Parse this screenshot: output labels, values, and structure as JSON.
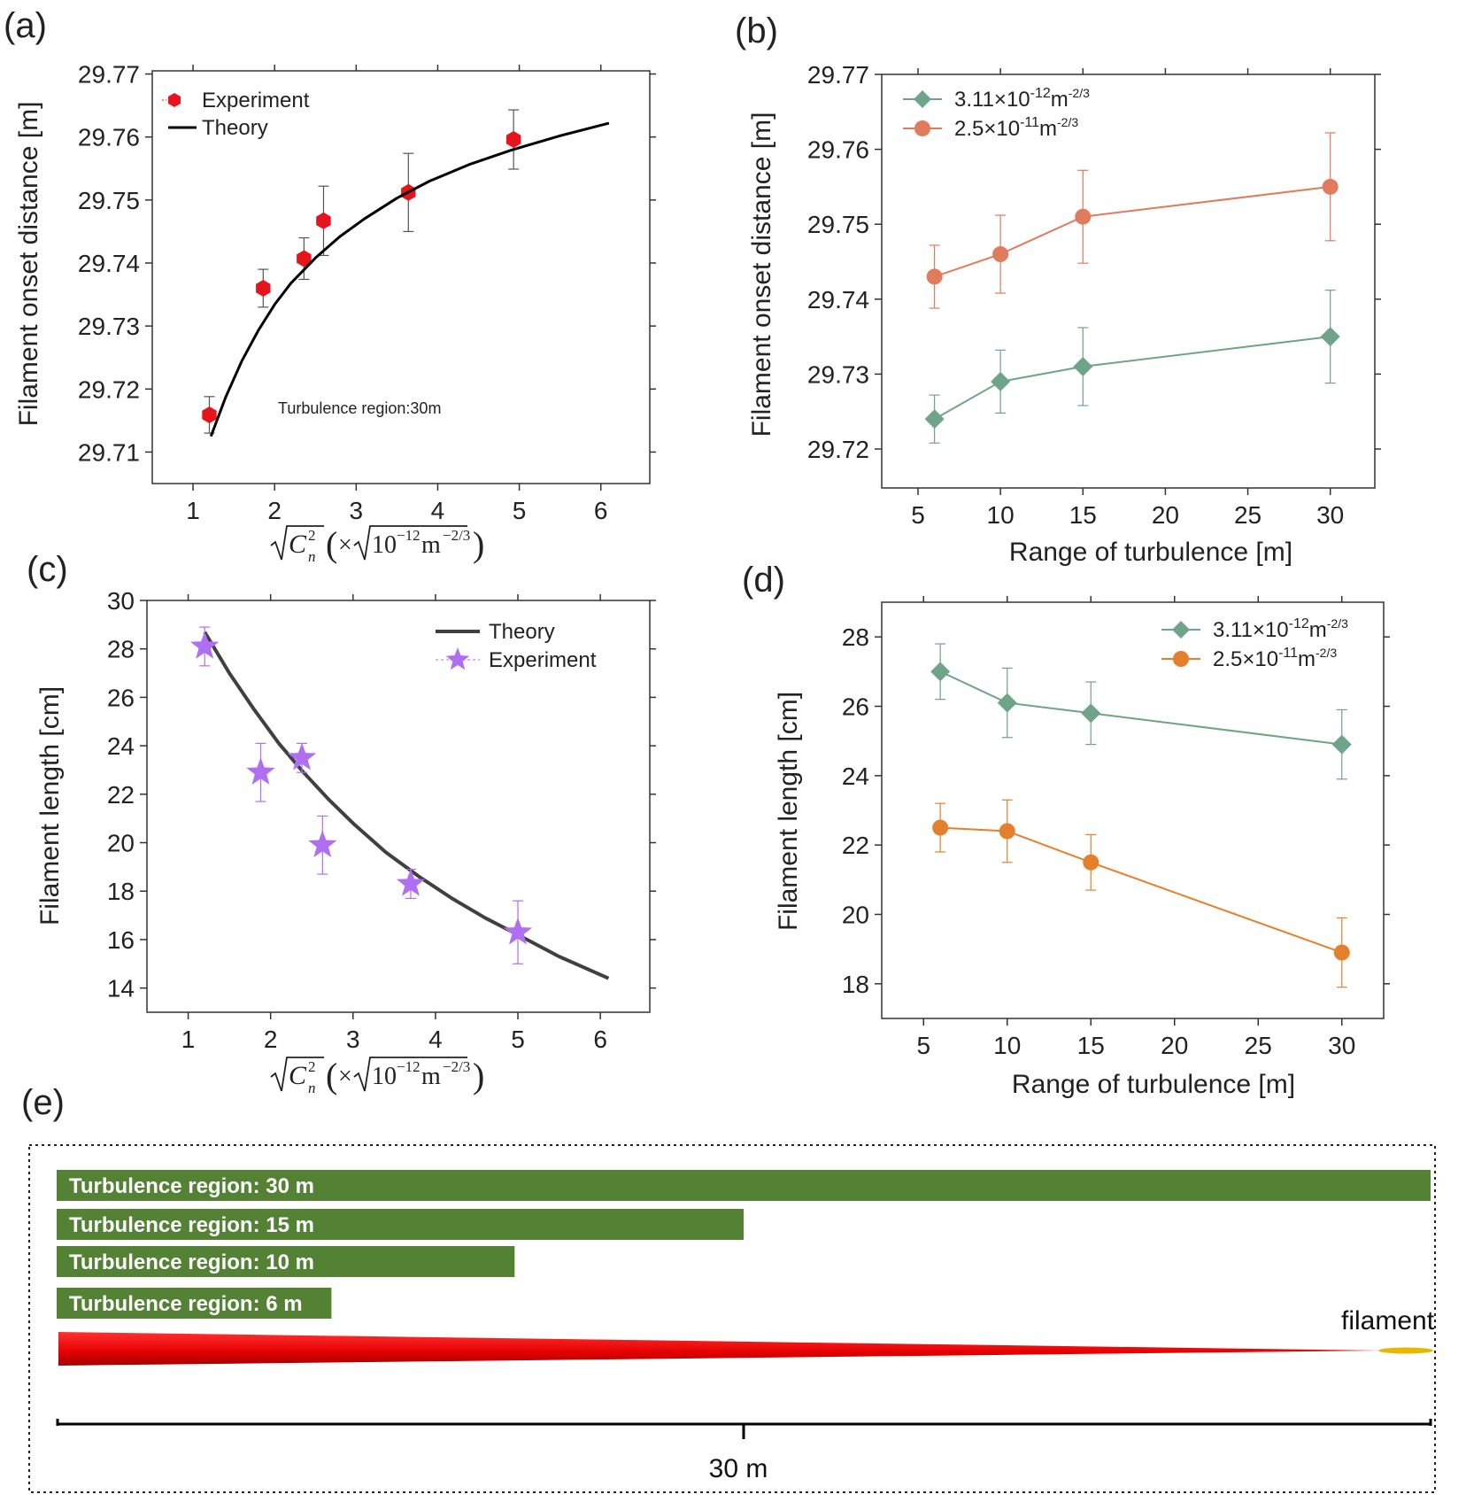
{
  "figure": {
    "panel_labels": [
      "(a)",
      "(b)",
      "(c)",
      "(d)",
      "(e)"
    ],
    "axis_unit_math": {
      "times": "×",
      "ten": "10",
      "exp": "−12",
      "unit": "m",
      "unit_exp": "−2/3",
      "cn": "C",
      "cn_sup": "2",
      "cn_sub": "n"
    }
  },
  "chart_data": [
    {
      "id": "a",
      "type": "scatter",
      "ylabel": "Filament onset distance [m]",
      "xlim": [
        0.5,
        6.6
      ],
      "ylim": [
        29.705,
        29.7705
      ],
      "xticks": [
        1,
        2,
        3,
        4,
        5,
        6
      ],
      "yticks": [
        29.71,
        29.72,
        29.73,
        29.74,
        29.75,
        29.76,
        29.77
      ],
      "ytick_labels": [
        "29.71",
        "29.72",
        "29.73",
        "29.74",
        "29.75",
        "29.76",
        "29.77"
      ],
      "annotation": "Turbulence region:30m",
      "legend": [
        {
          "label": "Experiment",
          "marker": "hexagon",
          "color": "#e8141b"
        },
        {
          "label": "Theory",
          "line": true,
          "color": "#000000"
        }
      ],
      "series": [
        {
          "name": "Experiment",
          "color": "#e8141b",
          "marker": "hexagon",
          "x": [
            1.2,
            1.86,
            2.36,
            2.6,
            3.64,
            4.93
          ],
          "y": [
            29.7159,
            29.736,
            29.7407,
            29.7467,
            29.7512,
            29.7596
          ],
          "err": [
            0.0029,
            0.003,
            0.0033,
            0.0055,
            0.0062,
            0.0047
          ]
        },
        {
          "name": "Theory",
          "color": "#000000",
          "line": true,
          "x": [
            1.22,
            1.4,
            1.6,
            1.8,
            2.0,
            2.2,
            2.5,
            2.8,
            3.1,
            3.5,
            3.9,
            4.4,
            4.9,
            5.5,
            6.1
          ],
          "y": [
            29.7125,
            29.7187,
            29.7245,
            29.7293,
            29.7334,
            29.7368,
            29.7408,
            29.7442,
            29.747,
            29.7503,
            29.753,
            29.7557,
            29.7579,
            29.7602,
            29.7622
          ]
        }
      ]
    },
    {
      "id": "b",
      "type": "line",
      "xlabel": "Range of turbulence [m]",
      "ylabel": "Filament onset distance [m]",
      "xlim": [
        2.8,
        32.7
      ],
      "ylim": [
        29.7148,
        29.77
      ],
      "xticks": [
        5,
        10,
        15,
        20,
        25,
        30
      ],
      "yticks": [
        29.72,
        29.73,
        29.74,
        29.75,
        29.76,
        29.77
      ],
      "ytick_labels": [
        "29.72",
        "29.73",
        "29.74",
        "29.75",
        "29.76",
        "29.77"
      ],
      "legend": [
        {
          "label": "3.11×10",
          "sup1": "-12",
          "mid": "m",
          "sup2": "-2/3",
          "marker": "diamond",
          "color": "#6fa38a"
        },
        {
          "label": "2.5×10",
          "sup1": "-11",
          "mid": "m",
          "sup2": "-2/3",
          "marker": "circle",
          "color": "#e07b5e"
        }
      ],
      "series": [
        {
          "name": "3.11×10-12m-2/3",
          "color": "#6fa38a",
          "marker": "diamond",
          "x": [
            6,
            10,
            15,
            30
          ],
          "y": [
            29.724,
            29.729,
            29.731,
            29.735
          ],
          "err": [
            0.0032,
            0.0042,
            0.0052,
            0.0062
          ]
        },
        {
          "name": "2.5×10-11m-2/3",
          "color": "#e07b5e",
          "marker": "circle",
          "x": [
            6,
            10,
            15,
            30
          ],
          "y": [
            29.743,
            29.746,
            29.751,
            29.755
          ],
          "err": [
            0.0042,
            0.0052,
            0.0062,
            0.0072
          ]
        }
      ]
    },
    {
      "id": "c",
      "type": "scatter",
      "ylabel": "Filament length [cm]",
      "xlim": [
        0.5,
        6.6
      ],
      "ylim": [
        13,
        30
      ],
      "xticks": [
        1,
        2,
        3,
        4,
        5,
        6
      ],
      "yticks": [
        14,
        16,
        18,
        20,
        22,
        24,
        26,
        28,
        30
      ],
      "ytick_labels": [
        "14",
        "16",
        "18",
        "20",
        "22",
        "24",
        "26",
        "28",
        "30"
      ],
      "legend": [
        {
          "label": "Theory",
          "line": true,
          "color": "#404040"
        },
        {
          "label": "Experiment",
          "marker": "star",
          "color": "#b06ef2"
        }
      ],
      "series": [
        {
          "name": "Theory",
          "color": "#404040",
          "line": true,
          "x": [
            1.2,
            1.5,
            1.8,
            2.1,
            2.4,
            2.7,
            3.0,
            3.4,
            3.8,
            4.2,
            4.6,
            5.0,
            5.5,
            6.1
          ],
          "y": [
            28.7,
            27.0,
            25.5,
            24.1,
            22.9,
            21.8,
            20.8,
            19.6,
            18.6,
            17.7,
            16.9,
            16.2,
            15.3,
            14.4
          ]
        },
        {
          "name": "Experiment",
          "color": "#b06ef2",
          "marker": "star",
          "x": [
            1.2,
            1.88,
            2.38,
            2.63,
            3.7,
            5.0
          ],
          "y": [
            28.1,
            22.9,
            23.5,
            19.9,
            18.3,
            16.3
          ],
          "err": [
            0.8,
            1.2,
            0.6,
            1.2,
            0.6,
            1.3
          ]
        }
      ]
    },
    {
      "id": "d",
      "type": "line",
      "xlabel": "Range of turbulence [m]",
      "ylabel": "Filament length [cm]",
      "xlim": [
        2.5,
        32.5
      ],
      "ylim": [
        17,
        29
      ],
      "xticks": [
        5,
        10,
        15,
        20,
        25,
        30
      ],
      "yticks": [
        18,
        20,
        22,
        24,
        26,
        28
      ],
      "ytick_labels": [
        "18",
        "20",
        "22",
        "24",
        "26",
        "28"
      ],
      "legend": [
        {
          "label": "3.11×10",
          "sup1": "-12",
          "mid": "m",
          "sup2": "-2/3",
          "marker": "diamond",
          "color": "#6fa38a"
        },
        {
          "label": "2.5×10",
          "sup1": "-11",
          "mid": "m",
          "sup2": "-2/3",
          "marker": "circle",
          "color": "#e4802c"
        }
      ],
      "series": [
        {
          "name": "3.11×10-12m-2/3",
          "color": "#6fa38a",
          "marker": "diamond",
          "x": [
            6,
            10,
            15,
            30
          ],
          "y": [
            27.0,
            26.1,
            25.8,
            24.9
          ],
          "err": [
            0.8,
            1.0,
            0.9,
            1.0
          ]
        },
        {
          "name": "2.5×10-11m-2/3",
          "color": "#e4802c",
          "marker": "circle",
          "x": [
            6,
            10,
            15,
            30
          ],
          "y": [
            22.5,
            22.4,
            21.5,
            18.9
          ],
          "err": [
            0.7,
            0.9,
            0.8,
            1.0
          ]
        }
      ]
    }
  ],
  "schematic": {
    "bar_color": "#548235",
    "beam_color": "#e60000",
    "filament_color": "#e8b800",
    "total_range_m": 30,
    "bars": [
      {
        "label": "Turbulence region: 30 m",
        "range_m": 30
      },
      {
        "label": "Turbulence region: 15 m",
        "range_m": 15
      },
      {
        "label": "Turbulence region: 10 m",
        "range_m": 10
      },
      {
        "label": "Turbulence region: 6 m",
        "range_m": 6
      }
    ],
    "filament_label": "filament",
    "scale_label": "30 m"
  }
}
